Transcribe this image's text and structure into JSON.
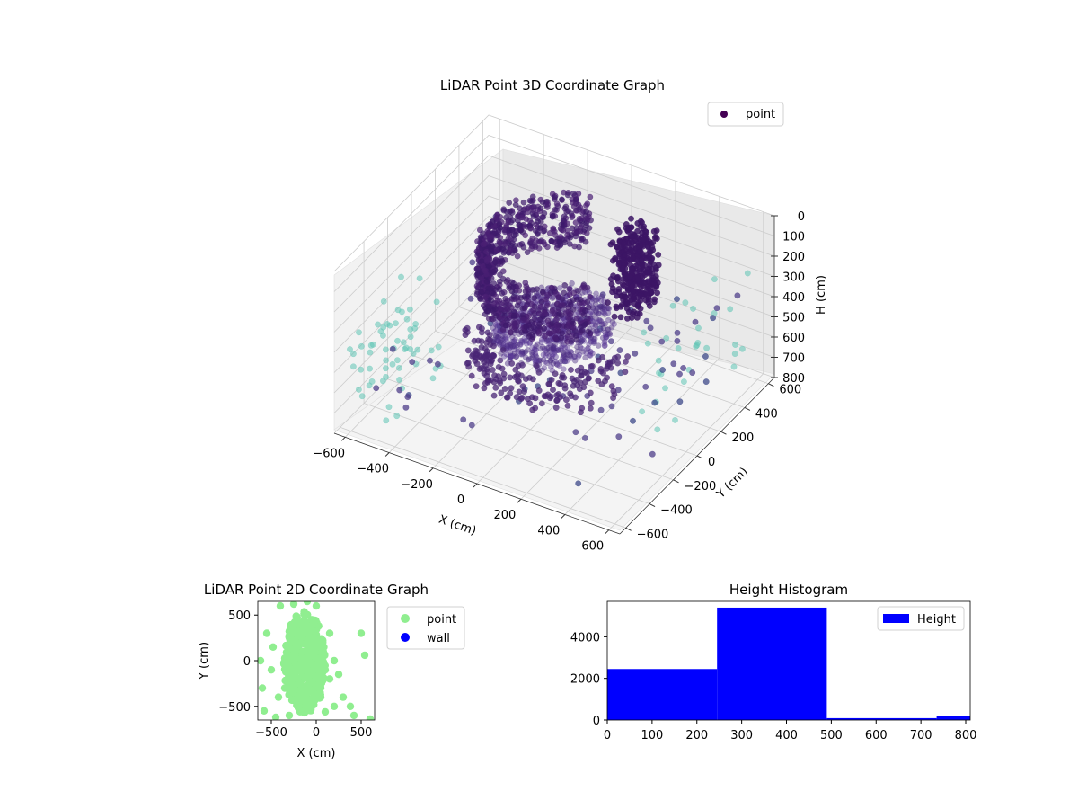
{
  "colors": {
    "viridis_dark": "#440154",
    "viridis_teal": "#5ec4b5",
    "scatter2d": "#90ee90",
    "wall": "#0000ff",
    "histogram": "#0000ff"
  },
  "chart_data": [
    {
      "type": "scatter",
      "projection": "3d",
      "title": "LiDAR Point 3D Coordinate Graph",
      "xlabel": "X (cm)",
      "ylabel": "Y (cm)",
      "zlabel": "H (cm)",
      "xlim": [
        -650,
        650
      ],
      "ylim": [
        -650,
        650
      ],
      "zlim": [
        800,
        0
      ],
      "x_ticks": [
        "−600",
        "−400",
        "−200",
        "0",
        "200",
        "400",
        "600"
      ],
      "y_ticks": [
        "−600",
        "−400",
        "−200",
        "0",
        "200",
        "400",
        "600"
      ],
      "z_ticks": [
        "0",
        "100",
        "200",
        "300",
        "400",
        "500",
        "600",
        "700",
        "800"
      ],
      "colormap": "viridis",
      "legend": [
        {
          "label": "point",
          "color": "#440154"
        }
      ],
      "legend_placement": "upper-right",
      "grid": true,
      "series": [
        {
          "name": "point",
          "description_of_shape": "dense ring of points around the origin, ceiling ring near H 50–150, floor ellipse near H 400–500, sparse wall points at the edges"
        }
      ]
    },
    {
      "type": "scatter",
      "title": "LiDAR Point 2D Coordinate Graph",
      "xlabel": "X (cm)",
      "ylabel": "Y (cm)",
      "xlim": [
        -650,
        650
      ],
      "ylim": [
        -650,
        650
      ],
      "x_ticks": [
        "−500",
        "0",
        "500"
      ],
      "y_ticks": [
        "500",
        "0",
        "−500"
      ],
      "legend": [
        {
          "label": "point",
          "color": "#90ee90"
        },
        {
          "label": "wall",
          "color": "#0000ff"
        }
      ],
      "legend_placement": "outside-right",
      "series": [
        {
          "name": "point",
          "points": [
            [
              -400,
              600
            ],
            [
              -250,
              620
            ],
            [
              -100,
              650
            ],
            [
              0,
              600
            ],
            [
              -550,
              300
            ],
            [
              -620,
              0
            ],
            [
              -600,
              -300
            ],
            [
              -580,
              -550
            ],
            [
              -450,
              -620
            ],
            [
              -300,
              -600
            ],
            [
              -150,
              -560
            ],
            [
              100,
              -560
            ],
            [
              200,
              -500
            ],
            [
              300,
              -400
            ],
            [
              380,
              -500
            ],
            [
              420,
              -600
            ],
            [
              600,
              -640
            ],
            [
              500,
              300
            ],
            [
              540,
              60
            ],
            [
              -500,
              -100
            ],
            [
              -480,
              150
            ],
            [
              -420,
              -400
            ],
            [
              -200,
              400
            ],
            [
              -50,
              450
            ],
            [
              150,
              300
            ],
            [
              200,
              0
            ],
            [
              150,
              -200
            ],
            [
              -250,
              -100
            ],
            [
              -300,
              250
            ],
            [
              -100,
              -350
            ],
            [
              50,
              -400
            ],
            [
              250,
              -150
            ],
            [
              -350,
              -300
            ],
            [
              -150,
              100
            ],
            [
              50,
              150
            ],
            [
              100,
              -100
            ],
            [
              -200,
              -250
            ]
          ]
        },
        {
          "name": "wall",
          "points": []
        }
      ]
    },
    {
      "type": "bar",
      "subtype": "histogram",
      "title": "Height Histogram",
      "xlabel": "",
      "ylabel": "",
      "xlim": [
        0,
        810
      ],
      "ylim": [
        0,
        5700
      ],
      "x_ticks": [
        "0",
        "100",
        "200",
        "300",
        "400",
        "500",
        "600",
        "700",
        "800"
      ],
      "y_ticks": [
        "0",
        "2000",
        "4000"
      ],
      "legend": [
        {
          "label": "Height",
          "color": "#0000ff"
        }
      ],
      "legend_placement": "upper-right",
      "bins": [
        [
          0,
          245
        ],
        [
          245,
          490
        ],
        [
          490,
          735
        ],
        [
          735,
          810
        ]
      ],
      "values": [
        2450,
        5400,
        90,
        200
      ]
    }
  ]
}
